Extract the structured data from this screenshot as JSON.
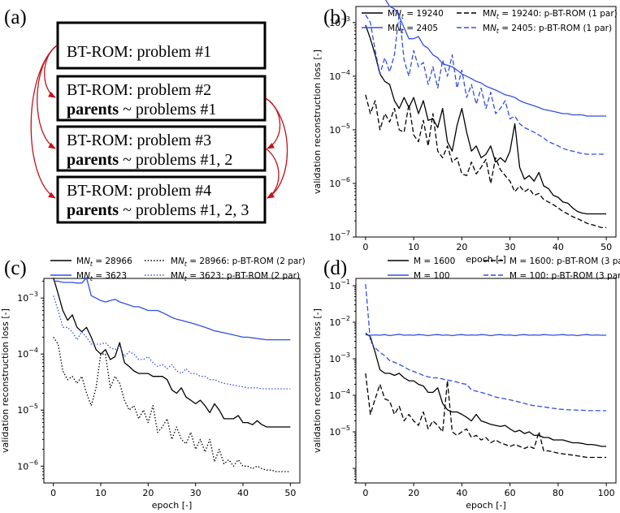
{
  "panels": {
    "a": {
      "label": "(a)",
      "boxes": [
        {
          "line1": "BT-ROM: problem #1",
          "bold": "",
          "rest": ""
        },
        {
          "line1": "BT-ROM: problem #2",
          "bold": "parents",
          "rest": " ~ problems #1"
        },
        {
          "line1": "BT-ROM: problem #3",
          "bold": "parents",
          "rest": " ~ problems #1, 2"
        },
        {
          "line1": "BT-ROM: problem #4",
          "bold": "parents",
          "rest": " ~ problems #1, 2, 3"
        }
      ],
      "arrow_color": "#c0141c"
    },
    "b": {
      "label": "(b)"
    },
    "c": {
      "label": "(c)"
    },
    "d": {
      "label": "(d)"
    }
  },
  "chart_data": [
    {
      "panel": "b",
      "type": "line",
      "xlabel": "epoch [-]",
      "ylabel": "validation reconstruction loss [-]",
      "yscale": "log",
      "xlim": [
        -2,
        52
      ],
      "ylim_exp": [
        -7,
        -2.7
      ],
      "xticks": [
        0,
        10,
        20,
        30,
        40,
        50
      ],
      "yticks_exp": [
        -7,
        -6,
        -5,
        -4,
        -3
      ],
      "legend_position": "top",
      "series": [
        {
          "name": "MNt = 19240",
          "color": "#000000",
          "style": "solid",
          "x_end": 50,
          "values": [
            0.0009,
            0.0005,
            0.00025,
            0.00011,
            8e-05,
            7e-05,
            3.5e-05,
            2.5e-05,
            4e-05,
            2.6e-05,
            4e-05,
            2e-05,
            3.5e-05,
            1.5e-05,
            1.6e-05,
            1.1e-05,
            2.5e-05,
            6e-06,
            4e-06,
            1.2e-05,
            2.5e-05,
            9e-06,
            4e-06,
            5e-06,
            3e-06,
            3.5e-06,
            5e-06,
            2.5e-06,
            3e-06,
            2.5e-06,
            4e-06,
            1.3e-05,
            2e-06,
            1.2e-06,
            1.4e-06,
            1.1e-06,
            1.6e-06,
            9e-07,
            8e-07,
            6e-07,
            5.5e-07,
            4.5e-07,
            4.3e-07,
            3.5e-07,
            3e-07,
            2.8e-07,
            2.7e-07,
            2.7e-07,
            2.7e-07,
            2.7e-07,
            2.7e-07
          ]
        },
        {
          "name": "MNt = 2405",
          "color": "#3050e0",
          "style": "solid",
          "x_end": 50,
          "values": [
            0.0036,
            0.0036,
            0.0036,
            0.0038,
            0.0028,
            0.002,
            0.0018,
            0.0013,
            0.0008,
            0.0005,
            0.0005,
            0.00055,
            0.00038,
            0.00033,
            0.00025,
            0.00022,
            0.00017,
            0.00016,
            0.00015,
            0.00013,
            0.00011,
            0.0001,
            9e-05,
            8e-05,
            7.5e-05,
            6.5e-05,
            6e-05,
            5.5e-05,
            5e-05,
            4.5e-05,
            4.3e-05,
            4e-05,
            3.5e-05,
            3.2e-05,
            3e-05,
            2.8e-05,
            2.6e-05,
            2.4e-05,
            2.3e-05,
            2.2e-05,
            2.1e-05,
            2e-05,
            2e-05,
            1.9e-05,
            1.9e-05,
            1.9e-05,
            1.8e-05,
            1.8e-05,
            1.8e-05,
            1.8e-05,
            1.8e-05
          ]
        },
        {
          "name": "MNt = 19240: p-BT-ROM (1 par)",
          "color": "#000000",
          "style": "dashed",
          "x_end": 50,
          "values": [
            4.5e-05,
            2e-05,
            3.5e-05,
            1e-05,
            2e-05,
            1.4e-05,
            2.5e-05,
            1e-05,
            9e-06,
            3e-05,
            8e-06,
            6e-06,
            1.5e-05,
            5e-06,
            2e-05,
            4e-06,
            3e-06,
            5e-06,
            2.5e-06,
            3e-06,
            1.5e-06,
            1.4e-06,
            2.5e-06,
            1.5e-06,
            2e-06,
            2.8e-06,
            1e-06,
            3e-06,
            1.8e-06,
            1.4e-06,
            1.1e-06,
            7e-07,
            9e-07,
            7e-07,
            8e-07,
            6e-07,
            6.5e-07,
            5e-07,
            4.5e-07,
            4e-07,
            3.5e-07,
            3e-07,
            2.7e-07,
            2.4e-07,
            2.2e-07,
            2e-07,
            1.8e-07,
            1.7e-07,
            1.6e-07,
            1.5e-07,
            1.5e-07
          ]
        },
        {
          "name": "MNt = 2405: p-BT-ROM (1 par)",
          "color": "#3050e0",
          "style": "dashed",
          "x_end": 50,
          "values": [
            0.0014,
            0.001,
            0.0003,
            0.00011,
            0.00022,
            0.00012,
            0.00025,
            0.0015,
            0.0002,
            0.0001,
            0.0003,
            0.00015,
            0.00018,
            7e-05,
            0.00015,
            6e-05,
            0.0002,
            0.0001,
            0.00025,
            6e-05,
            0.00013,
            4e-05,
            7e-05,
            3e-05,
            6e-05,
            2.5e-05,
            5e-05,
            2e-05,
            2.5e-05,
            3.5e-05,
            1.6e-05,
            1.8e-05,
            1.3e-05,
            1.1e-05,
            1e-05,
            9e-06,
            8e-06,
            7e-06,
            6e-06,
            5.5e-06,
            5e-06,
            4.5e-06,
            4.2e-06,
            4e-06,
            3.8e-06,
            3.6e-06,
            3.5e-06,
            3.5e-06,
            3.5e-06,
            3.5e-06,
            3.5e-06
          ]
        }
      ]
    },
    {
      "panel": "c",
      "type": "line",
      "xlabel": "epoch [-]",
      "ylabel": "validation reconstruction loss [-]",
      "yscale": "log",
      "xlim": [
        -2,
        52
      ],
      "ylim_exp": [
        -6.3,
        -2.65
      ],
      "xticks": [
        0,
        10,
        20,
        30,
        40,
        50
      ],
      "yticks_exp": [
        -6,
        -5,
        -4,
        -3
      ],
      "legend_position": "top",
      "series": [
        {
          "name": "MNt = 28966",
          "color": "#000000",
          "style": "solid",
          "x_end": 50,
          "values": [
            0.0023,
            0.0012,
            0.0006,
            0.0004,
            0.0005,
            0.0003,
            0.00025,
            0.0003,
            0.0002,
            0.00012,
            0.0001,
            0.00012,
            8e-05,
            9e-05,
            0.00016,
            7e-05,
            6e-05,
            5e-05,
            4.5e-05,
            4.5e-05,
            4.5e-05,
            4e-05,
            4e-05,
            4e-05,
            3.5e-05,
            2.3e-05,
            2e-05,
            2.5e-05,
            1.7e-05,
            1.5e-05,
            1.3e-05,
            1.5e-05,
            1.2e-05,
            9e-06,
            1.3e-05,
            1e-05,
            7e-06,
            7e-06,
            7e-06,
            8e-06,
            6e-06,
            6e-06,
            5.5e-06,
            6.5e-06,
            5.5e-06,
            5e-06,
            5e-06,
            5e-06,
            5e-06,
            5e-06,
            5e-06
          ]
        },
        {
          "name": "MNt = 3623",
          "color": "#3050e0",
          "style": "solid",
          "x_end": 50,
          "values": [
            0.002,
            0.002,
            0.0019,
            0.0019,
            0.0019,
            0.00185,
            0.00185,
            0.0023,
            0.0011,
            0.001,
            0.0009,
            0.00085,
            0.0009,
            0.00095,
            0.00085,
            0.0008,
            0.00075,
            0.0007,
            0.0007,
            0.00065,
            0.0006,
            0.0006,
            0.0006,
            0.00055,
            0.0005,
            0.00045,
            0.00042,
            0.0004,
            0.00038,
            0.00036,
            0.00034,
            0.00032,
            0.0003,
            0.00028,
            0.00026,
            0.00025,
            0.00024,
            0.00023,
            0.00022,
            0.00021,
            0.0002,
            0.0002,
            0.000195,
            0.00019,
            0.000185,
            0.00018,
            0.00018,
            0.00018,
            0.00018,
            0.00018,
            0.00018
          ]
        },
        {
          "name": "MNt = 28966: p-BT-ROM (2 par)",
          "color": "#000000",
          "style": "dotted",
          "x_end": 50,
          "values": [
            0.0002,
            0.00015,
            5e-05,
            3.5e-05,
            4e-05,
            3e-05,
            4e-05,
            2e-05,
            1.2e-05,
            2.5e-05,
            0.0001,
            0.0001,
            2.5e-05,
            4e-05,
            3e-05,
            1.5e-05,
            1e-05,
            1.2e-05,
            7e-06,
            1e-05,
            6e-06,
            1.2e-05,
            4e-06,
            5e-06,
            7e-06,
            3e-06,
            5e-06,
            3e-06,
            2.5e-06,
            4e-06,
            2e-06,
            3e-06,
            1.8e-06,
            3e-06,
            1.2e-06,
            2e-06,
            1.1e-06,
            1.3e-06,
            1e-06,
            1.3e-06,
            1e-06,
            1e-06,
            9e-07,
            1e-06,
            9e-07,
            8.5e-07,
            8.5e-07,
            8e-07,
            8e-07,
            8e-07,
            8e-07
          ]
        },
        {
          "name": "MNt = 3623: p-BT-ROM (2 par)",
          "color": "#3050e0",
          "style": "dotted",
          "x_end": 50,
          "values": [
            0.0011,
            0.0006,
            0.0003,
            0.0003,
            0.00025,
            0.00018,
            0.00025,
            0.0002,
            0.00015,
            0.00015,
            0.00015,
            0.00016,
            0.00013,
            0.00012,
            0.00014,
            9e-05,
            0.00011,
            0.0001,
            8e-05,
            8e-05,
            9e-05,
            7e-05,
            6e-05,
            6.5e-05,
            5.5e-05,
            6.5e-05,
            5e-05,
            4.5e-05,
            5.5e-05,
            4.5e-05,
            4.5e-05,
            4e-05,
            4e-05,
            3.5e-05,
            3.5e-05,
            3.2e-05,
            3e-05,
            2.9e-05,
            2.8e-05,
            2.7e-05,
            2.6e-05,
            2.5e-05,
            2.5e-05,
            2.5e-05,
            2.4e-05,
            2.4e-05,
            2.4e-05,
            2.4e-05,
            2.4e-05,
            2.4e-05,
            2.4e-05
          ]
        }
      ]
    },
    {
      "panel": "d",
      "type": "line",
      "xlabel": "epoch [-]",
      "ylabel": "validation reconstruction loss [-]",
      "yscale": "log",
      "xlim": [
        -4,
        104
      ],
      "ylim_exp": [
        -6.4,
        -0.8
      ],
      "xticks": [
        0,
        20,
        40,
        60,
        80,
        100
      ],
      "yticks_exp": [
        -5,
        -4,
        -3,
        -2,
        -1
      ],
      "legend_position": "top",
      "series": [
        {
          "name": "M = 1600",
          "color": "#000000",
          "style": "solid",
          "x_end": 100,
          "values": [
            0.005,
            0.004,
            0.0015,
            0.0005,
            0.0004,
            0.0004,
            0.00035,
            0.0004,
            0.0003,
            0.00025,
            0.00025,
            0.0002,
            0.00018,
            0.00012,
            0.00012,
            0.00016,
            6e-05,
            4e-05,
            3.5e-05,
            3.5e-05,
            3e-05,
            2.5e-05,
            2e-05,
            3e-05,
            2e-05,
            1.8e-05,
            1.6e-05,
            1.5e-05,
            1.4e-05,
            1.5e-05,
            1.2e-05,
            1e-05,
            1.1e-05,
            9e-06,
            1e-05,
            8e-06,
            8e-06,
            7e-06,
            7e-06,
            6e-06,
            6e-06,
            6e-06,
            5.5e-06,
            5e-06,
            5e-06,
            4.8e-06,
            4.5e-06,
            4.5e-06,
            4.3e-06,
            4e-06,
            4e-06
          ]
        },
        {
          "name": "M = 100",
          "color": "#3050e0",
          "style": "solid",
          "x_end": 100,
          "values": [
            0.0045,
            0.0044,
            0.0045,
            0.0044,
            0.0046,
            0.0043,
            0.0045,
            0.0047,
            0.0044,
            0.0045,
            0.0044,
            0.0046,
            0.0045,
            0.0043,
            0.0045,
            0.0046,
            0.0044,
            0.0045,
            0.0043,
            0.0045,
            0.0046,
            0.0044,
            0.0045,
            0.0044,
            0.0046,
            0.0045,
            0.0043,
            0.0045,
            0.0046,
            0.0044,
            0.0045,
            0.0043,
            0.0045,
            0.0046,
            0.0044,
            0.0045,
            0.0044,
            0.0046,
            0.0045,
            0.0044,
            0.0045,
            0.0046,
            0.0044,
            0.0045,
            0.0043,
            0.0045,
            0.0046,
            0.0044,
            0.0045,
            0.0044,
            0.0044
          ]
        },
        {
          "name": "M = 1600: p-BT-ROM (3 par)",
          "color": "#000000",
          "style": "dashed",
          "x_end": 100,
          "values": [
            0.0004,
            3e-05,
            8e-05,
            0.0002,
            8e-05,
            7e-05,
            3e-05,
            5e-05,
            2e-05,
            3e-05,
            2e-05,
            1.5e-05,
            3.5e-05,
            1.2e-05,
            2e-05,
            1.5e-05,
            1e-05,
            0.00025,
            1e-05,
            8e-06,
            1e-05,
            1.2e-05,
            7e-06,
            8e-06,
            6e-06,
            7e-06,
            5e-06,
            6e-06,
            5e-06,
            4.5e-06,
            4e-06,
            4.5e-06,
            4e-06,
            3.5e-06,
            4e-06,
            3.5e-06,
            1e-05,
            3e-06,
            3e-06,
            2.8e-06,
            2.6e-06,
            2.5e-06,
            2.4e-06,
            2.3e-06,
            2.2e-06,
            2.1e-06,
            2e-06,
            2e-06,
            2e-06,
            2e-06,
            2e-06
          ]
        },
        {
          "name": "M = 100: p-BT-ROM (3 par)",
          "color": "#3050e0",
          "style": "dashed",
          "x_end": 100,
          "values": [
            0.11,
            0.003,
            0.002,
            0.0015,
            0.0012,
            0.0009,
            0.0008,
            0.0007,
            0.0006,
            0.0005,
            0.00045,
            0.0004,
            0.00035,
            0.00032,
            0.0003,
            0.0003,
            0.00028,
            0.00026,
            0.00025,
            0.00023,
            0.00021,
            0.0002,
            0.00014,
            0.00013,
            0.00012,
            0.00011,
            0.0001,
            9e-05,
            8.5e-05,
            8e-05,
            7.5e-05,
            7e-05,
            6.5e-05,
            6e-05,
            5.5e-05,
            5.2e-05,
            5e-05,
            4.8e-05,
            4.6e-05,
            4.4e-05,
            4.2e-05,
            4.1e-05,
            4e-05,
            4e-05,
            3.9e-05,
            3.9e-05,
            3.8e-05,
            3.8e-05,
            3.8e-05,
            3.8e-05,
            3.8e-05
          ]
        }
      ]
    }
  ]
}
